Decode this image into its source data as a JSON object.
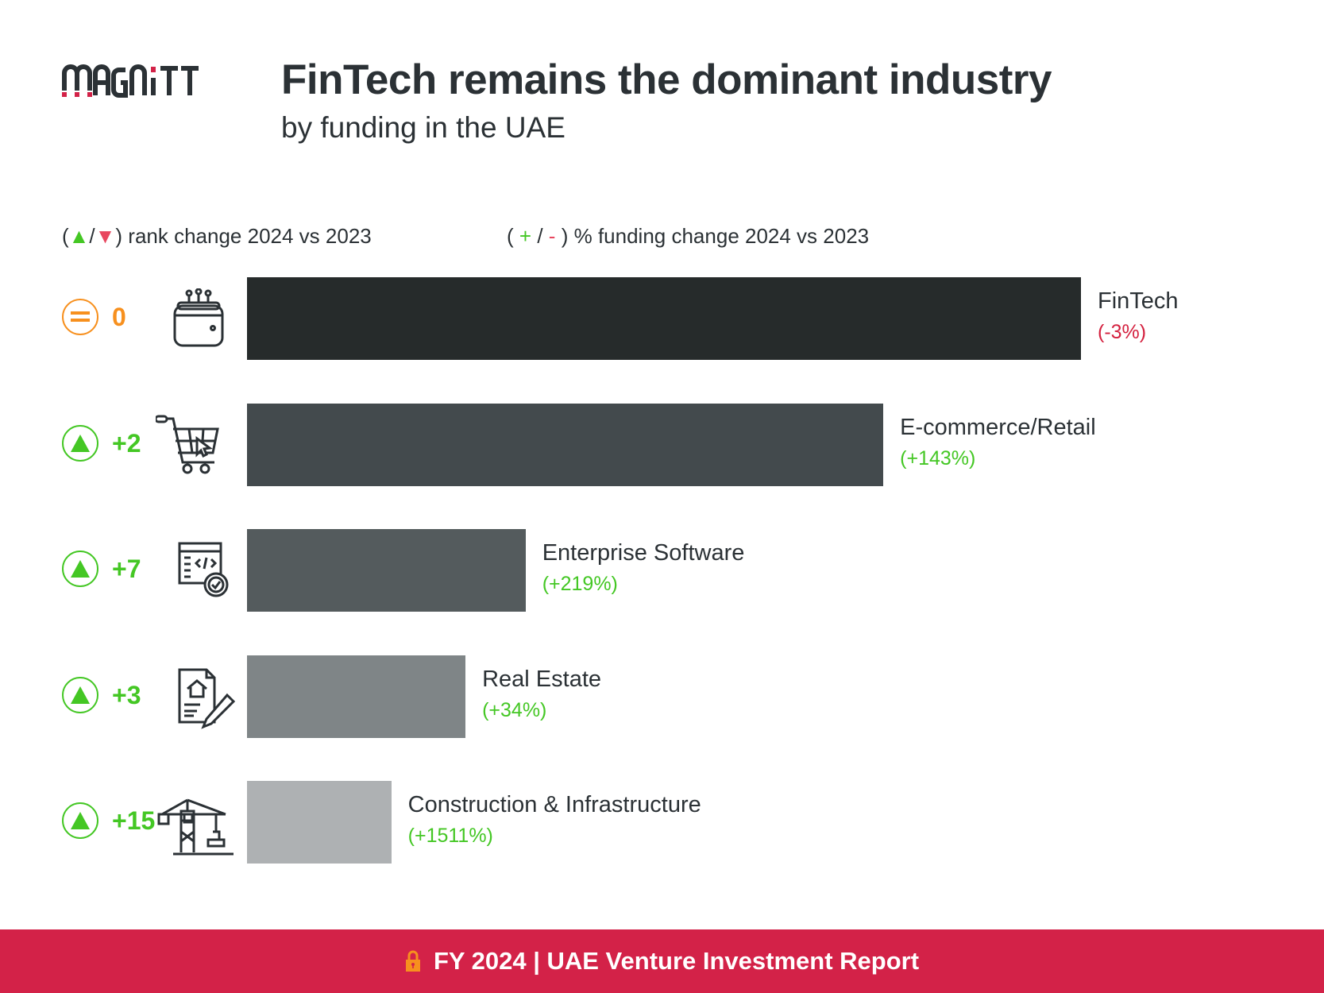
{
  "logo": {
    "text": "MAGNITT",
    "brand_color": "#2b3135",
    "accent_color": "#d32248"
  },
  "header": {
    "title": "FinTech remains the dominant industry",
    "subtitle": "by funding in the UAE"
  },
  "legend": {
    "rank": {
      "open": "(",
      "up": "▲",
      "sep": "/",
      "down": "▼",
      "close": ")",
      "text": "rank change 2024 vs 2023"
    },
    "funding": {
      "open": "(",
      "plus": "+",
      "sep": "/",
      "minus": "-",
      "close": ")",
      "text": "% funding change 2024 vs 2023"
    }
  },
  "colors": {
    "up": "#44c724",
    "down": "#d4213f",
    "neutral": "#f7901e"
  },
  "chart_data": {
    "type": "bar",
    "orientation": "horizontal",
    "title": "FinTech remains the dominant industry",
    "subtitle": "by funding in the UAE",
    "value_note": "relative funding, FinTech = 100 (no axis printed)",
    "categories": [
      "FinTech",
      "E-commerce/Retail",
      "Enterprise Software",
      "Real Estate",
      "Construction & Infrastructure"
    ],
    "values": [
      100,
      76.3,
      33.4,
      26.2,
      17.3
    ],
    "funding_change_labels": [
      "(-3%)",
      "(+143%)",
      "(+219%)",
      "(+34%)",
      "(+1511%)"
    ],
    "funding_change_direction": [
      "down",
      "up",
      "up",
      "up",
      "up"
    ],
    "rank_change_labels": [
      "0",
      "+2",
      "+7",
      "+3",
      "+15"
    ],
    "rank_change_direction": [
      "neutral",
      "up",
      "up",
      "up",
      "up"
    ],
    "icons": [
      "digital-wallet-icon",
      "shopping-cart-icon",
      "software-code-icon",
      "real-estate-contract-icon",
      "construction-crane-icon"
    ],
    "bar_colors": [
      "#262b2b",
      "#434a4d",
      "#545b5d",
      "#7f8587",
      "#aeb1b3"
    ],
    "grid": false
  },
  "footer": {
    "text": "FY 2024 | UAE Venture Investment Report",
    "icon": "lock-icon",
    "color": "#d32248"
  }
}
